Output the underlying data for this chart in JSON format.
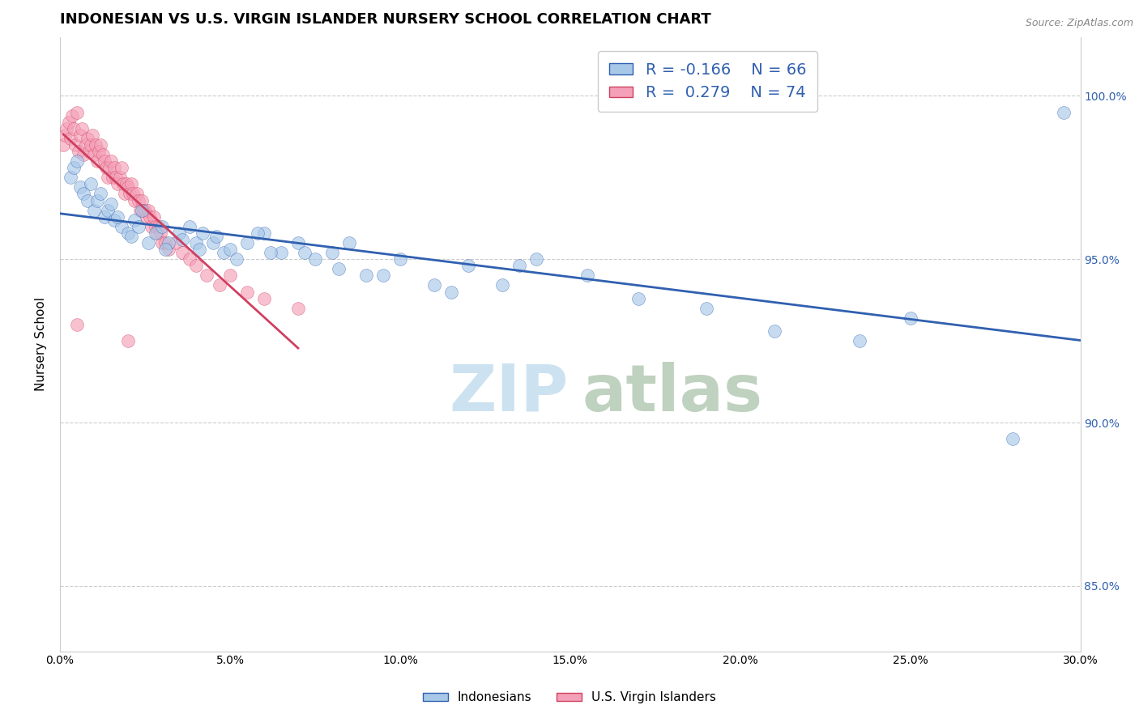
{
  "title": "INDONESIAN VS U.S. VIRGIN ISLANDER NURSERY SCHOOL CORRELATION CHART",
  "source_text": "Source: ZipAtlas.com",
  "ylabel": "Nursery School",
  "xlim": [
    0.0,
    30.0
  ],
  "ylim": [
    83.0,
    101.8
  ],
  "ytick_values": [
    85.0,
    90.0,
    95.0,
    100.0
  ],
  "right_tick_labels": [
    "85.0%",
    "90.0%",
    "95.0%",
    "100.0%"
  ],
  "blue_color": "#a8c8e8",
  "pink_color": "#f4a0b8",
  "trend_blue": "#3060b0",
  "trend_pink": "#d04060",
  "indonesians_x": [
    0.3,
    0.4,
    0.5,
    0.6,
    0.7,
    0.8,
    0.9,
    1.0,
    1.1,
    1.2,
    1.3,
    1.4,
    1.5,
    1.6,
    1.8,
    2.0,
    2.2,
    2.4,
    2.6,
    2.8,
    3.0,
    3.2,
    3.5,
    3.8,
    4.0,
    4.2,
    4.5,
    4.8,
    5.0,
    5.5,
    6.0,
    6.5,
    7.0,
    7.5,
    8.0,
    8.5,
    9.0,
    10.0,
    11.0,
    12.0,
    13.0,
    14.0,
    15.5,
    17.0,
    19.0,
    21.0,
    23.5,
    25.0,
    28.0,
    29.5,
    1.7,
    2.1,
    2.3,
    3.1,
    3.6,
    4.1,
    4.6,
    5.2,
    5.8,
    6.2,
    7.2,
    8.2,
    9.5,
    11.5,
    13.5
  ],
  "indonesians_y": [
    97.5,
    97.8,
    98.0,
    97.2,
    97.0,
    96.8,
    97.3,
    96.5,
    96.8,
    97.0,
    96.3,
    96.5,
    96.7,
    96.2,
    96.0,
    95.8,
    96.2,
    96.5,
    95.5,
    95.8,
    96.0,
    95.5,
    95.8,
    96.0,
    95.5,
    95.8,
    95.5,
    95.2,
    95.3,
    95.5,
    95.8,
    95.2,
    95.5,
    95.0,
    95.2,
    95.5,
    94.5,
    95.0,
    94.2,
    94.8,
    94.2,
    95.0,
    94.5,
    93.8,
    93.5,
    92.8,
    92.5,
    93.2,
    89.5,
    99.5,
    96.3,
    95.7,
    96.0,
    95.3,
    95.6,
    95.3,
    95.7,
    95.0,
    95.8,
    95.2,
    95.2,
    94.7,
    94.5,
    94.0,
    94.8
  ],
  "virgin_islanders_x": [
    0.1,
    0.15,
    0.2,
    0.25,
    0.3,
    0.35,
    0.4,
    0.45,
    0.5,
    0.55,
    0.6,
    0.65,
    0.7,
    0.75,
    0.8,
    0.85,
    0.9,
    0.95,
    1.0,
    1.05,
    1.1,
    1.15,
    1.2,
    1.25,
    1.3,
    1.35,
    1.4,
    1.45,
    1.5,
    1.55,
    1.6,
    1.65,
    1.7,
    1.75,
    1.8,
    1.85,
    1.9,
    1.95,
    2.0,
    2.05,
    2.1,
    2.15,
    2.2,
    2.25,
    2.3,
    2.35,
    2.4,
    2.45,
    2.5,
    2.55,
    2.6,
    2.65,
    2.7,
    2.75,
    2.8,
    2.85,
    2.9,
    2.95,
    3.0,
    3.1,
    3.2,
    3.4,
    3.6,
    3.8,
    4.0,
    4.3,
    4.7,
    5.0,
    5.5,
    6.0,
    7.0,
    0.5,
    2.0
  ],
  "virgin_islanders_y": [
    98.5,
    98.8,
    99.0,
    99.2,
    98.7,
    99.4,
    99.0,
    98.5,
    99.5,
    98.3,
    98.8,
    99.0,
    98.2,
    98.5,
    98.7,
    98.3,
    98.5,
    98.8,
    98.2,
    98.5,
    98.0,
    98.3,
    98.5,
    98.2,
    98.0,
    97.8,
    97.5,
    97.8,
    98.0,
    97.5,
    97.8,
    97.5,
    97.3,
    97.5,
    97.8,
    97.3,
    97.0,
    97.3,
    97.2,
    97.0,
    97.3,
    97.0,
    96.8,
    97.0,
    96.8,
    96.5,
    96.8,
    96.5,
    96.5,
    96.3,
    96.5,
    96.3,
    96.0,
    96.3,
    96.0,
    95.8,
    96.0,
    95.8,
    95.5,
    95.5,
    95.3,
    95.5,
    95.2,
    95.0,
    94.8,
    94.5,
    94.2,
    94.5,
    94.0,
    93.8,
    93.5,
    93.0,
    92.5
  ],
  "title_fontsize": 13,
  "axis_label_fontsize": 11,
  "tick_fontsize": 10,
  "legend_fontsize": 14,
  "watermark_zip_color": "#c8dff0",
  "watermark_atlas_color": "#b8ccb8"
}
